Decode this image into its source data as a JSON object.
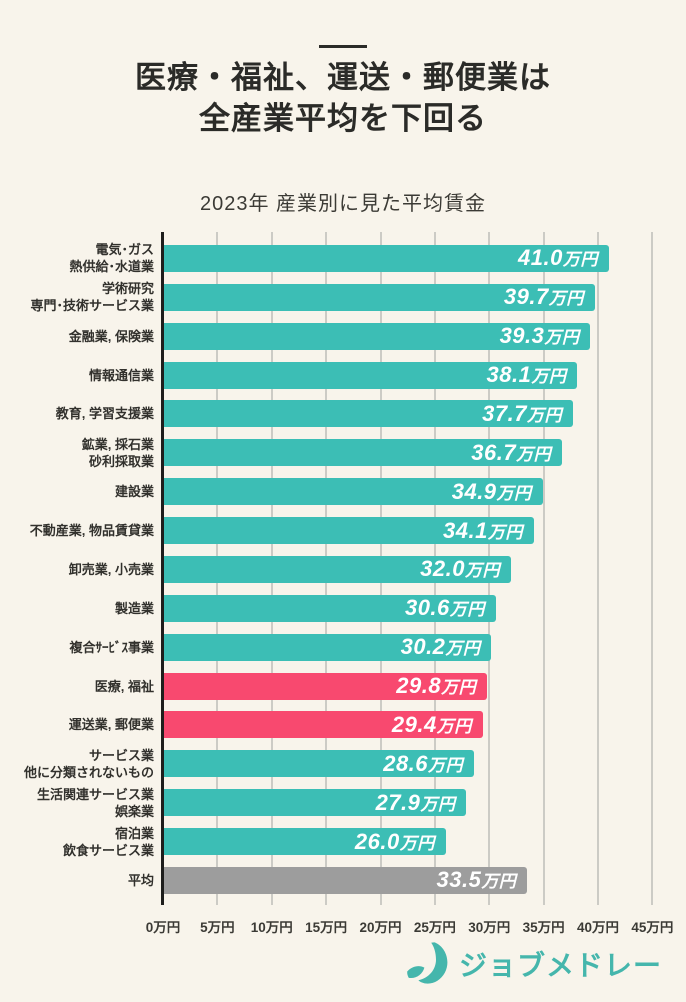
{
  "page": {
    "title_line1": "医療・福祉、運送・郵便業は",
    "title_line2": "全産業平均を下回る",
    "subtitle": "2023年 産業別に見た平均賃金",
    "brand": {
      "name": "ジョブメドレー",
      "icon": "jobmedley-swoosh-icon"
    }
  },
  "colors": {
    "background": "#F8F4EB",
    "teal": "#3CBEB5",
    "pink": "#F8496F",
    "gray": "#9D9D9D",
    "grid": "#CCCBC5",
    "axis": "#1E1E1C",
    "title": "#2B2B28",
    "label": "#32312D",
    "tick": "#3B3A35",
    "brand": "#45B6AC",
    "value_text": "#FFFFFF"
  },
  "chart_data": {
    "type": "bar",
    "orientation": "horizontal",
    "title": "2023年 産業別に見た平均賃金",
    "value_unit": "万円",
    "grid": true,
    "legend": false,
    "axis": {
      "max": 45.7,
      "ticks": [
        {
          "value": 0,
          "label": "0万円"
        },
        {
          "value": 5,
          "label": "5万円"
        },
        {
          "value": 10,
          "label": "10万円"
        },
        {
          "value": 15,
          "label": "15万円"
        },
        {
          "value": 20,
          "label": "20万円"
        },
        {
          "value": 25,
          "label": "25万円"
        },
        {
          "value": 30,
          "label": "30万円"
        },
        {
          "value": 35,
          "label": "35万円"
        },
        {
          "value": 40,
          "label": "40万円"
        },
        {
          "value": 45,
          "label": "45万円"
        }
      ]
    },
    "bar_colors": {
      "default": "#3CBEB5",
      "highlight": "#F8496F",
      "average": "#9D9D9D"
    },
    "rows": [
      {
        "label_lines": [
          "電気･ガス",
          "熱供給･水道業"
        ],
        "value": 41.0,
        "num": "41.0",
        "unit": "万円",
        "color": "teal"
      },
      {
        "label_lines": [
          "学術研究",
          "専門･技術サービス業"
        ],
        "value": 39.7,
        "num": "39.7",
        "unit": "万円",
        "color": "teal"
      },
      {
        "label_lines": [
          "金融業, 保険業"
        ],
        "value": 39.3,
        "num": "39.3",
        "unit": "万円",
        "color": "teal"
      },
      {
        "label_lines": [
          "情報通信業"
        ],
        "value": 38.1,
        "num": "38.1",
        "unit": "万円",
        "color": "teal"
      },
      {
        "label_lines": [
          "教育, 学習支援業"
        ],
        "value": 37.7,
        "num": "37.7",
        "unit": "万円",
        "color": "teal"
      },
      {
        "label_lines": [
          "鉱業, 採石業",
          "砂利採取業"
        ],
        "value": 36.7,
        "num": "36.7",
        "unit": "万円",
        "color": "teal"
      },
      {
        "label_lines": [
          "建設業"
        ],
        "value": 34.9,
        "num": "34.9",
        "unit": "万円",
        "color": "teal"
      },
      {
        "label_lines": [
          "不動産業, 物品賃貸業"
        ],
        "value": 34.1,
        "num": "34.1",
        "unit": "万円",
        "color": "teal"
      },
      {
        "label_lines": [
          "卸売業, 小売業"
        ],
        "value": 32.0,
        "num": "32.0",
        "unit": "万円",
        "color": "teal"
      },
      {
        "label_lines": [
          "製造業"
        ],
        "value": 30.6,
        "num": "30.6",
        "unit": "万円",
        "color": "teal"
      },
      {
        "label_lines": [
          "複合ｻｰﾋﾞｽ事業"
        ],
        "value": 30.2,
        "num": "30.2",
        "unit": "万円",
        "color": "teal"
      },
      {
        "label_lines": [
          "医療, 福祉"
        ],
        "value": 29.8,
        "num": "29.8",
        "unit": "万円",
        "color": "pink"
      },
      {
        "label_lines": [
          "運送業, 郵便業"
        ],
        "value": 29.4,
        "num": "29.4",
        "unit": "万円",
        "color": "pink"
      },
      {
        "label_lines": [
          "サービス業",
          "他に分類されないもの"
        ],
        "value": 28.6,
        "num": "28.6",
        "unit": "万円",
        "color": "teal"
      },
      {
        "label_lines": [
          "生活関連サービス業",
          "娯楽業"
        ],
        "value": 27.9,
        "num": "27.9",
        "unit": "万円",
        "color": "teal"
      },
      {
        "label_lines": [
          "宿泊業",
          "飲食サービス業"
        ],
        "value": 26.0,
        "num": "26.0",
        "unit": "万円",
        "color": "teal"
      },
      {
        "label_lines": [
          "平均"
        ],
        "value": 33.5,
        "num": "33.5",
        "unit": "万円",
        "color": "gray"
      }
    ]
  }
}
